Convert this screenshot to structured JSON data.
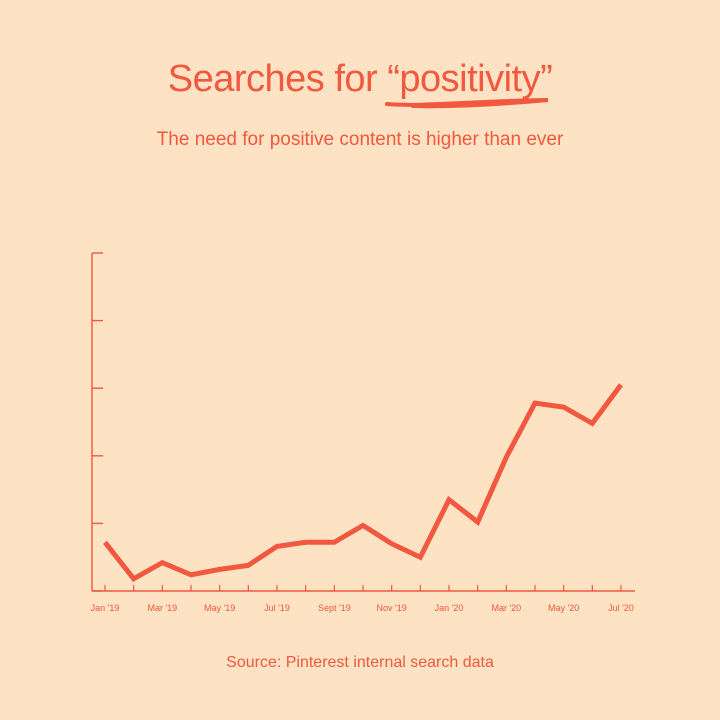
{
  "title": {
    "prefix": "Searches for ",
    "highlight": "“positivity”"
  },
  "subtitle": "The need for positive content is higher than ever",
  "source": "Source: Pinterest internal search data",
  "colors": {
    "background": "#fde3c3",
    "accent": "#f2573f"
  },
  "chart_data": {
    "type": "line",
    "title": "Searches for “positivity”",
    "subtitle": "The need for positive content is higher than ever",
    "xlabel": "",
    "ylabel": "",
    "tick_labels": [
      "Jan '19",
      "Mar '19",
      "May '19",
      "Jul '19",
      "Sept '19",
      "Nov '19",
      "Jan '20",
      "Mar '20",
      "May '20",
      "Jul '20"
    ],
    "x": [
      "Jan '19",
      "Feb '19",
      "Mar '19",
      "Apr '19",
      "May '19",
      "Jun '19",
      "Jul '19",
      "Aug '19",
      "Sept '19",
      "Oct '19",
      "Nov '19",
      "Dec '19",
      "Jan '20",
      "Feb '20",
      "Mar '20",
      "Apr '20",
      "May '20",
      "Jun '20",
      "Jul '20"
    ],
    "series": [
      {
        "values": [
          0.72,
          0.18,
          0.42,
          0.24,
          0.32,
          0.38,
          0.66,
          0.72,
          0.72,
          0.97,
          0.7,
          0.5,
          1.35,
          1.02,
          1.98,
          2.78,
          2.72,
          2.48,
          3.05
        ]
      }
    ],
    "ylim": [
      0,
      5
    ],
    "y_tick_count": 6,
    "grid": false,
    "y_tick_labels_shown": false
  }
}
